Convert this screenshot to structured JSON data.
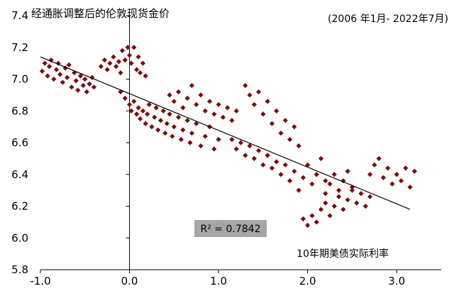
{
  "chart_data": {
    "type": "scatter",
    "title": "经通胀调整后的伦敦现货金价",
    "subtitle": "(2006 年1月- 2022年7月)",
    "xlabel": "10年期美债实际利率",
    "ylabel": "",
    "xlim": [
      -1.0,
      3.5
    ],
    "ylim": [
      5.8,
      7.4
    ],
    "x_ticks": [
      "-1.0",
      "0.0",
      "1.0",
      "2.0",
      "3.0"
    ],
    "y_ticks": [
      "5.8",
      "6.0",
      "6.2",
      "6.4",
      "6.6",
      "6.8",
      "7.0",
      "7.2",
      "7.4"
    ],
    "grid": false,
    "annotation": "R² = 0.7842",
    "colors": {
      "points": "#7a0c0c",
      "trendline": "#000000",
      "annotation_box": "#a6a6a6",
      "axis": "#000000"
    },
    "trendline": {
      "x": [
        -1.0,
        3.15
      ],
      "y": [
        7.14,
        6.18
      ]
    },
    "points": [
      [
        -0.98,
        7.05
      ],
      [
        -0.95,
        7.1
      ],
      [
        -0.92,
        7.02
      ],
      [
        -0.9,
        7.08
      ],
      [
        -0.88,
        7.12
      ],
      [
        -0.85,
        7.0
      ],
      [
        -0.82,
        7.06
      ],
      [
        -0.8,
        7.1
      ],
      [
        -0.78,
        7.03
      ],
      [
        -0.75,
        6.98
      ],
      [
        -0.72,
        7.07
      ],
      [
        -0.7,
        7.01
      ],
      [
        -0.68,
        7.09
      ],
      [
        -0.65,
        6.95
      ],
      [
        -0.62,
        7.04
      ],
      [
        -0.6,
        6.99
      ],
      [
        -0.58,
        6.93
      ],
      [
        -0.55,
        7.02
      ],
      [
        -0.52,
        6.96
      ],
      [
        -0.5,
        7.0
      ],
      [
        -0.48,
        6.92
      ],
      [
        -0.45,
        6.97
      ],
      [
        -0.42,
        7.01
      ],
      [
        -0.4,
        6.95
      ],
      [
        -0.32,
        7.08
      ],
      [
        -0.28,
        7.12
      ],
      [
        -0.25,
        7.06
      ],
      [
        -0.22,
        7.1
      ],
      [
        -0.18,
        7.14
      ],
      [
        -0.15,
        7.08
      ],
      [
        -0.12,
        7.11
      ],
      [
        -0.1,
        7.04
      ],
      [
        -0.08,
        7.18
      ],
      [
        -0.05,
        7.12
      ],
      [
        -0.02,
        7.2
      ],
      [
        0.0,
        7.15
      ],
      [
        0.02,
        7.1
      ],
      [
        0.05,
        7.2
      ],
      [
        0.08,
        7.06
      ],
      [
        0.1,
        7.14
      ],
      [
        0.12,
        7.04
      ],
      [
        0.15,
        7.1
      ],
      [
        0.18,
        7.02
      ],
      [
        -0.1,
        6.92
      ],
      [
        -0.05,
        6.88
      ],
      [
        0.0,
        6.84
      ],
      [
        0.02,
        6.8
      ],
      [
        0.05,
        6.86
      ],
      [
        0.08,
        6.78
      ],
      [
        0.1,
        6.82
      ],
      [
        0.12,
        6.75
      ],
      [
        0.15,
        6.8
      ],
      [
        0.18,
        6.72
      ],
      [
        0.2,
        6.78
      ],
      [
        0.22,
        6.84
      ],
      [
        0.25,
        6.7
      ],
      [
        0.28,
        6.76
      ],
      [
        0.3,
        6.82
      ],
      [
        0.32,
        6.68
      ],
      [
        0.35,
        6.74
      ],
      [
        0.38,
        6.8
      ],
      [
        0.4,
        6.66
      ],
      [
        0.42,
        6.72
      ],
      [
        0.45,
        6.78
      ],
      [
        0.48,
        6.64
      ],
      [
        0.5,
        6.7
      ],
      [
        0.55,
        6.76
      ],
      [
        0.58,
        6.62
      ],
      [
        0.6,
        6.68
      ],
      [
        0.65,
        6.74
      ],
      [
        0.68,
        6.6
      ],
      [
        0.7,
        6.66
      ],
      [
        0.75,
        6.72
      ],
      [
        0.8,
        6.58
      ],
      [
        0.85,
        6.64
      ],
      [
        0.9,
        6.7
      ],
      [
        0.95,
        6.56
      ],
      [
        1.0,
        6.62
      ],
      [
        0.45,
        6.9
      ],
      [
        0.5,
        6.86
      ],
      [
        0.55,
        6.92
      ],
      [
        0.6,
        6.82
      ],
      [
        0.65,
        6.88
      ],
      [
        0.7,
        6.96
      ],
      [
        0.75,
        6.84
      ],
      [
        0.8,
        6.9
      ],
      [
        0.85,
        6.8
      ],
      [
        0.9,
        6.86
      ],
      [
        0.95,
        6.78
      ],
      [
        1.0,
        6.84
      ],
      [
        1.05,
        6.76
      ],
      [
        1.1,
        6.82
      ],
      [
        1.15,
        6.74
      ],
      [
        1.2,
        6.8
      ],
      [
        1.3,
        6.96
      ],
      [
        1.35,
        6.9
      ],
      [
        1.4,
        6.84
      ],
      [
        1.45,
        6.92
      ],
      [
        1.5,
        6.78
      ],
      [
        1.55,
        6.86
      ],
      [
        1.6,
        6.72
      ],
      [
        1.65,
        6.8
      ],
      [
        1.7,
        6.66
      ],
      [
        1.75,
        6.74
      ],
      [
        1.8,
        6.62
      ],
      [
        1.85,
        6.7
      ],
      [
        1.9,
        6.58
      ],
      [
        1.15,
        6.62
      ],
      [
        1.2,
        6.56
      ],
      [
        1.25,
        6.6
      ],
      [
        1.3,
        6.52
      ],
      [
        1.35,
        6.58
      ],
      [
        1.4,
        6.5
      ],
      [
        1.45,
        6.55
      ],
      [
        1.5,
        6.46
      ],
      [
        1.55,
        6.52
      ],
      [
        1.6,
        6.44
      ],
      [
        1.65,
        6.48
      ],
      [
        1.7,
        6.4
      ],
      [
        1.75,
        6.46
      ],
      [
        1.8,
        6.36
      ],
      [
        1.85,
        6.42
      ],
      [
        1.9,
        6.3
      ],
      [
        1.95,
        6.38
      ],
      [
        2.0,
        6.46
      ],
      [
        2.05,
        6.34
      ],
      [
        2.1,
        6.4
      ],
      [
        2.15,
        6.5
      ],
      [
        2.2,
        6.36
      ],
      [
        1.95,
        6.12
      ],
      [
        2.0,
        6.08
      ],
      [
        2.05,
        6.14
      ],
      [
        2.1,
        6.1
      ],
      [
        2.15,
        6.18
      ],
      [
        2.2,
        6.22
      ],
      [
        2.25,
        6.14
      ],
      [
        2.3,
        6.2
      ],
      [
        2.35,
        6.26
      ],
      [
        2.4,
        6.18
      ],
      [
        2.45,
        6.24
      ],
      [
        2.5,
        6.3
      ],
      [
        2.55,
        6.22
      ],
      [
        2.6,
        6.28
      ],
      [
        2.65,
        6.2
      ],
      [
        2.7,
        6.26
      ],
      [
        2.2,
        6.28
      ],
      [
        2.25,
        6.34
      ],
      [
        2.3,
        6.4
      ],
      [
        2.35,
        6.3
      ],
      [
        2.4,
        6.36
      ],
      [
        2.45,
        6.42
      ],
      [
        2.5,
        6.32
      ],
      [
        2.7,
        6.4
      ],
      [
        2.75,
        6.46
      ],
      [
        2.8,
        6.5
      ],
      [
        2.85,
        6.38
      ],
      [
        2.9,
        6.44
      ],
      [
        2.95,
        6.34
      ],
      [
        3.0,
        6.4
      ],
      [
        3.05,
        6.36
      ],
      [
        3.1,
        6.44
      ],
      [
        3.15,
        6.32
      ],
      [
        3.2,
        6.42
      ]
    ]
  }
}
